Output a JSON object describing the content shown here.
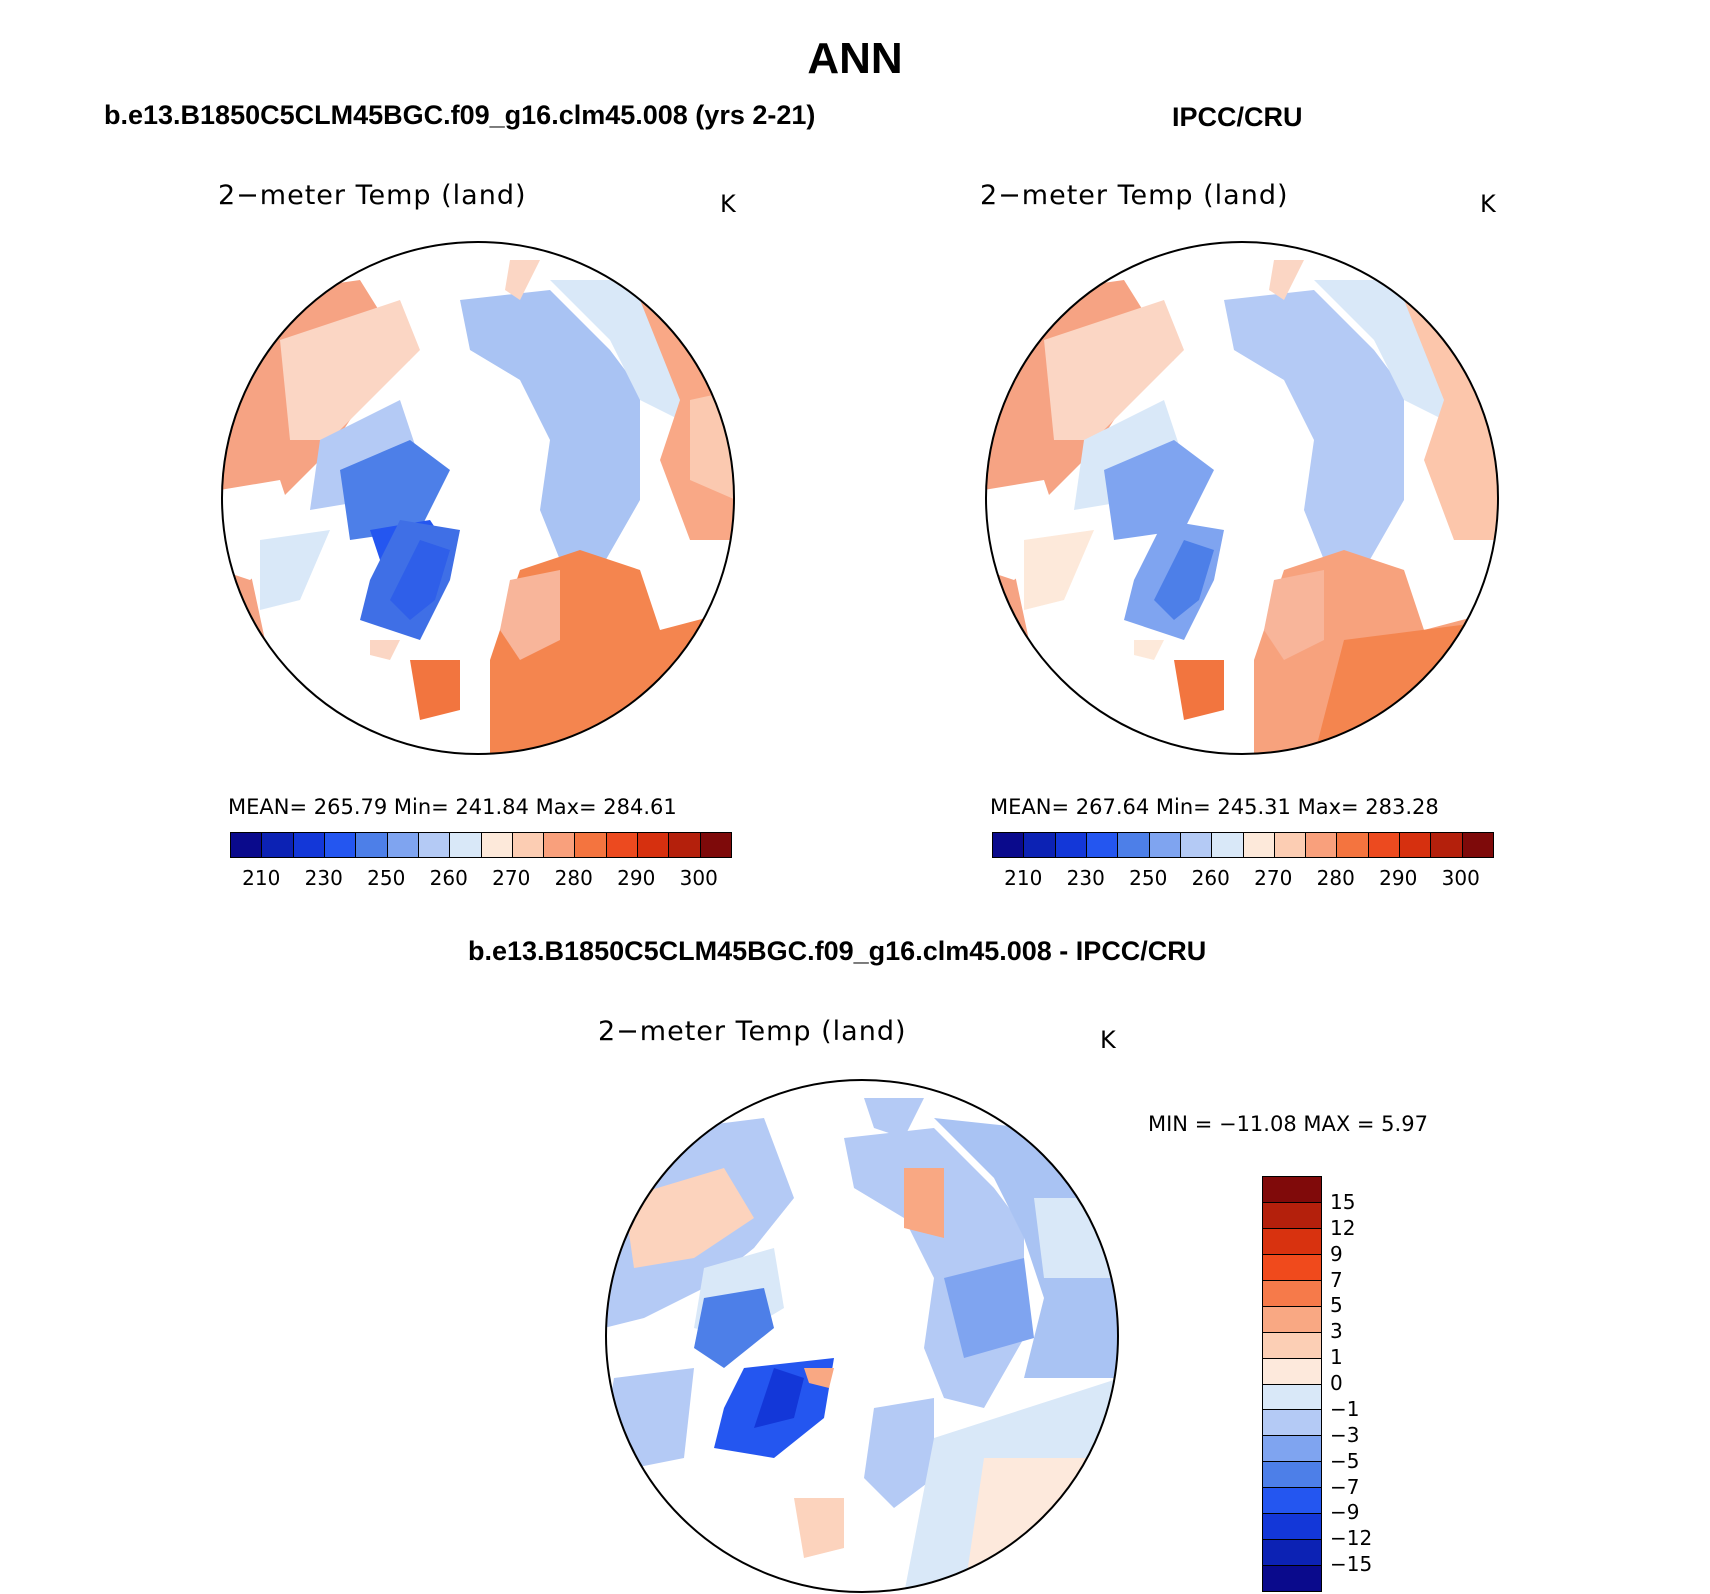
{
  "page_title": "ANN",
  "panel_left": {
    "header": "b.e13.B1850C5CLM45BGC.f09_g16.clm45.008 (yrs 2-21)",
    "plot_title": "2−meter Temp (land)",
    "units": "K",
    "stats": "MEAN=  265.79    Min=  241.84    Max=  284.61"
  },
  "panel_right": {
    "header": "IPCC/CRU",
    "plot_title": "2−meter Temp (land)",
    "units": "K",
    "stats": "MEAN=  267.64    Min=  245.31    Max=  283.28"
  },
  "panel_diff": {
    "header": "b.e13.B1850C5CLM45BGC.f09_g16.clm45.008 - IPCC/CRU",
    "plot_title": "2−meter Temp (land)",
    "units": "K",
    "minmax": "MIN  =  −11.08  MAX  =      5.97"
  },
  "colorbar_abs": {
    "colors": [
      "#0a0a8c",
      "#0c22b4",
      "#1337d8",
      "#2456f0",
      "#4d7fe8",
      "#7fa4f0",
      "#b4caf5",
      "#d9e8f8",
      "#fde9da",
      "#fccdb3",
      "#f9a07c",
      "#f4743f",
      "#ec4a1f",
      "#d6300f",
      "#b4200c",
      "#7e0a0a"
    ],
    "labels": [
      "210",
      "230",
      "250",
      "260",
      "270",
      "280",
      "290",
      "300"
    ]
  },
  "colorbar_diff": {
    "colors_top_to_bottom": [
      "#800a0a",
      "#b4200c",
      "#d8320f",
      "#f04a1c",
      "#f67a4a",
      "#f9a883",
      "#fccfb5",
      "#fde9dc",
      "#d9e8f8",
      "#b4caf5",
      "#7fa4f0",
      "#4d7fe8",
      "#2456f0",
      "#1337d8",
      "#0c22b4",
      "#0a0a8c"
    ],
    "labels": [
      "15",
      "12",
      "9",
      "7",
      "5",
      "3",
      "1",
      "0",
      "−1",
      "−3",
      "−5",
      "−7",
      "−9",
      "−12",
      "−15"
    ]
  },
  "colors": {
    "greenland_left": "#3f6fe6",
    "arctic_blue": "#a9c3f3",
    "warm": "#f7a27d",
    "ocean": "#ffffff"
  }
}
